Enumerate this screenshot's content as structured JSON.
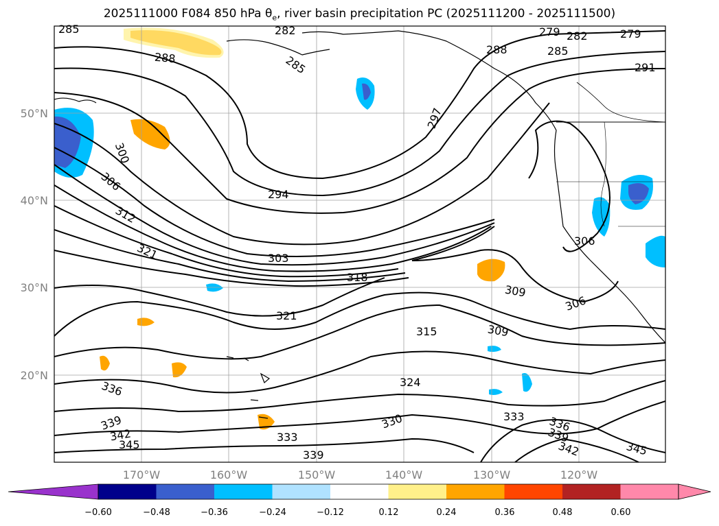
{
  "title": {
    "pre": "2025111000 F084 850 hPa θ",
    "sub": "e",
    "post": ", river basin precipitation PC (2025111200 - 2025111500)"
  },
  "map": {
    "lat_ticks": [
      "50°N",
      "40°N",
      "30°N",
      "20°N"
    ],
    "lon_ticks": [
      "170°W",
      "160°W",
      "150°W",
      "140°W",
      "130°W",
      "120°W"
    ],
    "contour_labels": [
      "285",
      "288",
      "282",
      "285",
      "279",
      "282",
      "279",
      "288",
      "285",
      "291",
      "297",
      "300",
      "306",
      "294",
      "312",
      "321",
      "303",
      "318",
      "306",
      "309",
      "306",
      "321",
      "315",
      "309",
      "324",
      "336",
      "339",
      "333",
      "330",
      "342",
      "345",
      "333",
      "336",
      "339",
      "342",
      "345",
      "339"
    ],
    "colors": {
      "contour": "#000000",
      "border": "#000000",
      "grid": "#a0a0a0"
    }
  },
  "colorbar": {
    "colors": [
      "#9932cc",
      "#00008b",
      "#3a5fcd",
      "#00bfff",
      "#b0e2ff",
      "#ffffff",
      "#fff08a",
      "#ffa500",
      "#ff4500",
      "#b22222",
      "#ff88aa",
      "#ff88aa"
    ],
    "under_color": "#9932cc",
    "over_color": "#ff88aa",
    "tick_labels": [
      "−0.60",
      "−0.48",
      "−0.36",
      "−0.24",
      "−0.12",
      "0.12",
      "0.24",
      "0.36",
      "0.48",
      "0.60"
    ]
  }
}
